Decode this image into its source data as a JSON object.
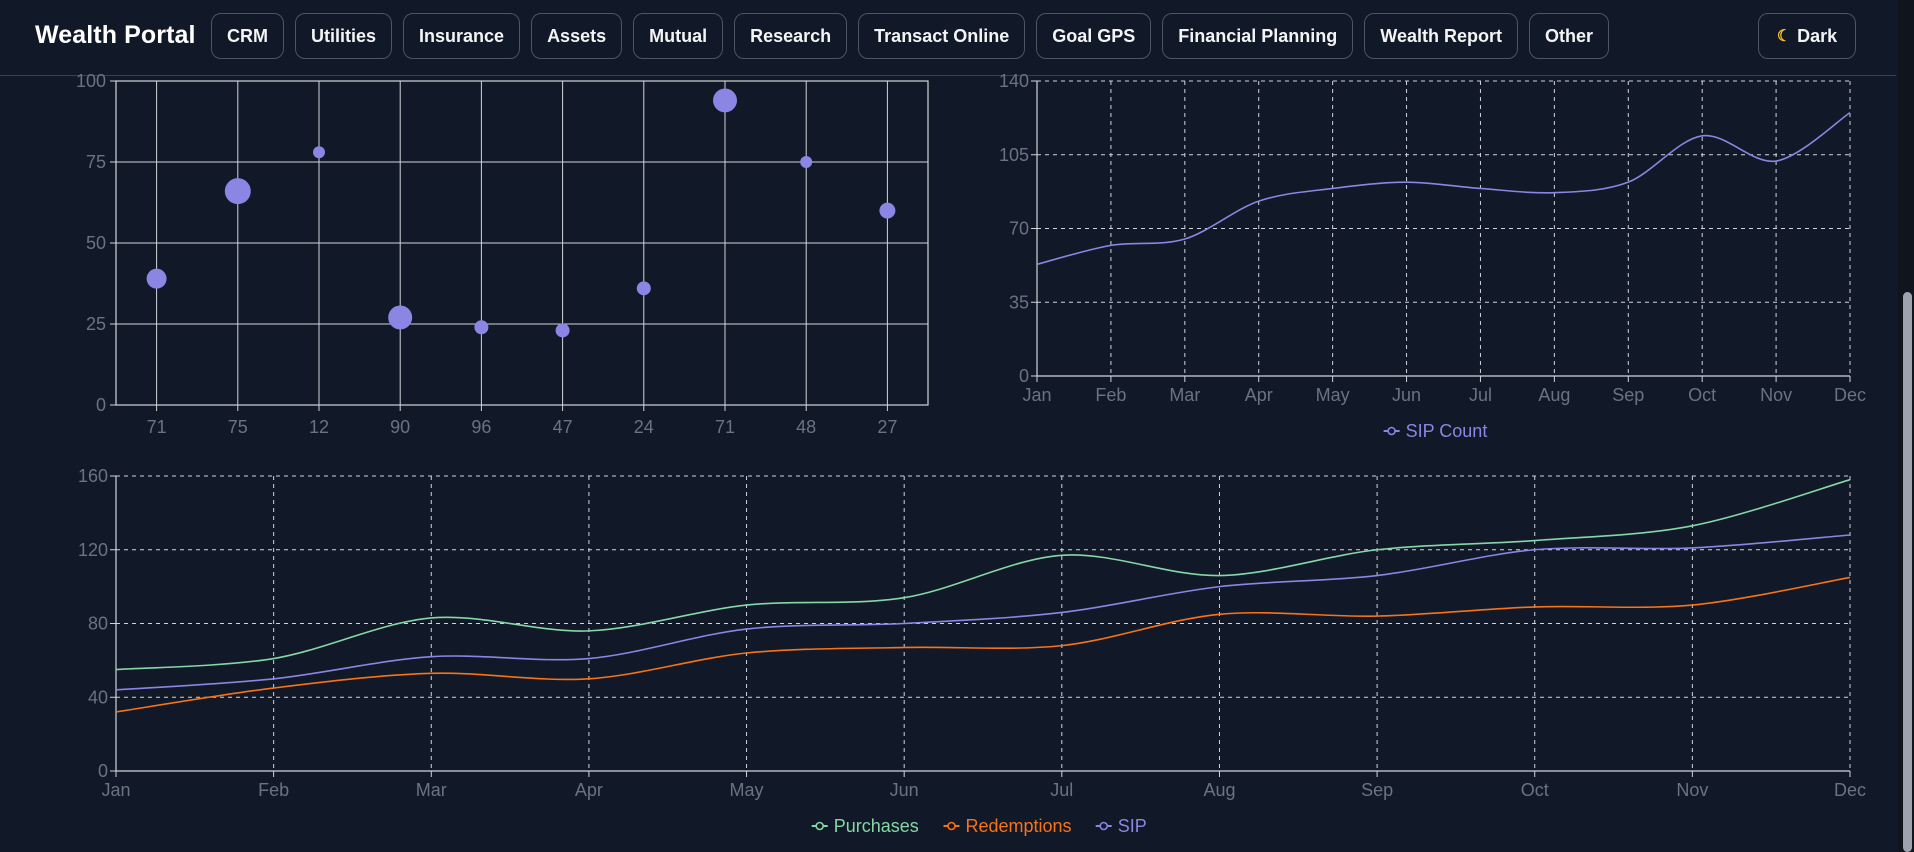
{
  "app": {
    "title": "Wealth Portal"
  },
  "nav": {
    "items": [
      "CRM",
      "Utilities",
      "Insurance",
      "Assets",
      "Mutual",
      "Research",
      "Transact Online",
      "Goal GPS",
      "Financial Planning",
      "Wealth Report",
      "Other"
    ]
  },
  "theme": {
    "label": "Dark",
    "icon": "moon-icon"
  },
  "colors": {
    "purple": "#8b85e3",
    "green": "#86d7a6",
    "orange": "#f97316",
    "grid": "#e5e7eb",
    "axis_text": "#6b7280"
  },
  "chart_data": [
    {
      "type": "scatter",
      "title": "",
      "categories": [
        "71",
        "75",
        "12",
        "90",
        "96",
        "47",
        "24",
        "71",
        "48",
        "27"
      ],
      "values": [
        39,
        66,
        78,
        27,
        24,
        23,
        36,
        94,
        75,
        60
      ],
      "sizes": [
        10,
        13,
        6,
        12,
        7,
        7,
        7,
        12,
        6,
        8
      ],
      "ylim": [
        0,
        100
      ],
      "yticks": [
        0,
        25,
        50,
        75,
        100
      ],
      "grid": true,
      "color": "#8b85e3"
    },
    {
      "type": "line",
      "title": "",
      "categories": [
        "Jan",
        "Feb",
        "Mar",
        "Apr",
        "May",
        "Jun",
        "Jul",
        "Aug",
        "Sep",
        "Oct",
        "Nov",
        "Dec"
      ],
      "series": [
        {
          "name": "SIP Count",
          "values": [
            53,
            62,
            65,
            83,
            89,
            92,
            89,
            87,
            92,
            114,
            102,
            125
          ],
          "color": "#8b85e3"
        }
      ],
      "ylim": [
        0,
        140
      ],
      "yticks": [
        0,
        35,
        70,
        105,
        140
      ],
      "grid": "dashed",
      "legend": "bottom"
    },
    {
      "type": "line",
      "title": "",
      "categories": [
        "Jan",
        "Feb",
        "Mar",
        "Apr",
        "May",
        "Jun",
        "Jul",
        "Aug",
        "Sep",
        "Oct",
        "Nov",
        "Dec"
      ],
      "series": [
        {
          "name": "Purchases",
          "values": [
            55,
            61,
            83,
            76,
            90,
            94,
            117,
            106,
            120,
            125,
            133,
            158
          ],
          "color": "#86d7a6"
        },
        {
          "name": "Redemptions",
          "values": [
            32,
            45,
            53,
            50,
            64,
            67,
            68,
            85,
            84,
            89,
            90,
            105
          ],
          "color": "#f97316"
        },
        {
          "name": "SIP",
          "values": [
            44,
            50,
            62,
            61,
            77,
            80,
            86,
            100,
            106,
            120,
            121,
            128
          ],
          "color": "#8b85e3"
        }
      ],
      "ylim": [
        0,
        160
      ],
      "yticks": [
        0,
        40,
        80,
        120,
        160
      ],
      "grid": "dashed",
      "legend": "bottom"
    }
  ]
}
